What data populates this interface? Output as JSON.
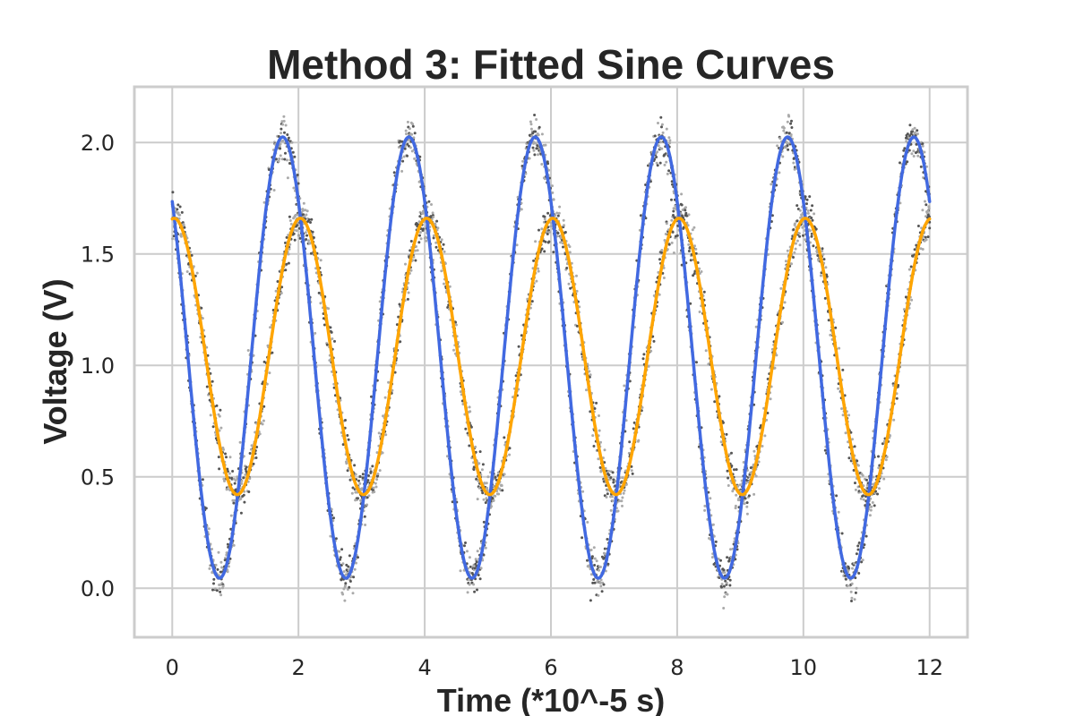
{
  "chart_data": {
    "type": "scatter",
    "title": "Method 3: Fitted Sine Curves",
    "xlabel": "Time (*10^-5 s)",
    "ylabel": "Voltage (V)",
    "xlim": [
      -0.6,
      12.6
    ],
    "ylim": [
      -0.22,
      2.25
    ],
    "xticks": [
      0,
      2,
      4,
      6,
      8,
      10,
      12
    ],
    "xtick_labels": [
      "0",
      "2",
      "4",
      "6",
      "8",
      "10",
      "12"
    ],
    "yticks": [
      0.0,
      0.5,
      1.0,
      1.5,
      2.0
    ],
    "ytick_labels": [
      "0.0",
      "0.5",
      "1.0",
      "1.5",
      "2.0"
    ],
    "grid": true,
    "legend": false,
    "series": [
      {
        "kind": "fitted_sine",
        "color": "#4169e1",
        "amplitude": 0.99,
        "offset": 1.035,
        "period": 2.0,
        "peak_at": 1.75,
        "x_range": [
          0,
          12
        ]
      },
      {
        "kind": "fitted_sine",
        "color": "#ffa500",
        "amplitude": 0.62,
        "offset": 1.04,
        "period": 2.0,
        "peak_at": 0.03,
        "x_range": [
          0,
          12
        ]
      },
      {
        "kind": "measured_samples",
        "color": "#555555",
        "noise": 0.09,
        "follows": [
          "#4169e1",
          "#ffa500"
        ],
        "x_range": [
          0,
          12
        ]
      }
    ]
  }
}
